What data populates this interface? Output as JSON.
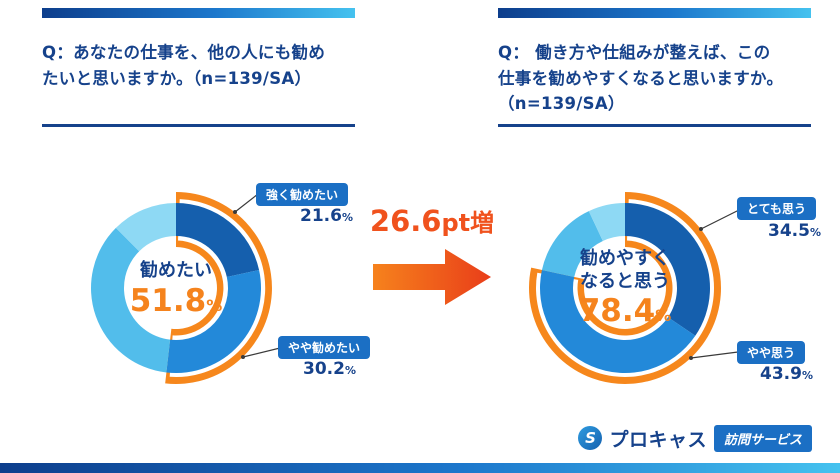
{
  "left_panel": {
    "question": "Q：あなたの仕事を、他の人にも勧め\nたいと思いますか。（n=139/SA）",
    "center": {
      "label": "勧めたい",
      "value": "51.8",
      "unit": "%"
    },
    "callouts": [
      {
        "label": "強く勧めたい",
        "value": "21.6",
        "unit": "%"
      },
      {
        "label": "やや勧めたい",
        "value": "30.2",
        "unit": "%"
      }
    ]
  },
  "right_panel": {
    "question": "Q： 働き方や仕組みが整えば、この\n仕事を勧めやすくなると思いますか。\n（n=139/SA）",
    "center": {
      "label": "勧めやすく\nなると思う",
      "value": "78.4",
      "unit": "%"
    },
    "callouts": [
      {
        "label": "とても思う",
        "value": "34.5",
        "unit": "%"
      },
      {
        "label": "やや思う",
        "value": "43.9",
        "unit": "%"
      }
    ]
  },
  "delta": {
    "value": "26.6",
    "suffix": "pt増"
  },
  "logo": {
    "icon_letter": "S",
    "brand": "プロキャス",
    "service": "訪問サービス"
  },
  "colors": {
    "navy": "#16428B",
    "badge_blue": "#1B6FC4",
    "accent_orange": "#F5831D",
    "delta_orange": "#F0521D"
  },
  "chart_data": [
    {
      "type": "pie",
      "style": "donut",
      "title": "あなたの仕事を、他の人にも勧めたいと思いますか。（n=139/SA）",
      "legend_position": "callouts",
      "segments": [
        {
          "label": "強く勧めたい",
          "value": 21.6,
          "color": "#155FAD"
        },
        {
          "label": "やや勧めたい",
          "value": 30.2,
          "color": "#2389D9"
        },
        {
          "label": "",
          "value": 35.7,
          "color": "#52BDEB"
        },
        {
          "label": "",
          "value": 12.5,
          "color": "#8ED9F4"
        }
      ],
      "highlight": {
        "label": "勧めたい",
        "value": 51.8,
        "ring_color": "#F6871C"
      }
    },
    {
      "type": "pie",
      "style": "donut",
      "title": "働き方や仕組みが整えば、この仕事を勧めやすくなると思いますか。（n=139/SA）",
      "legend_position": "callouts",
      "segments": [
        {
          "label": "とても思う",
          "value": 34.5,
          "color": "#155FAD"
        },
        {
          "label": "やや思う",
          "value": 43.9,
          "color": "#2389D9"
        },
        {
          "label": "",
          "value": 14.6,
          "color": "#52BDEB"
        },
        {
          "label": "",
          "value": 7.0,
          "color": "#8ED9F4"
        }
      ],
      "highlight": {
        "label": "勧めやすくなると思う",
        "value": 78.4,
        "ring_color": "#F6871C"
      }
    }
  ]
}
